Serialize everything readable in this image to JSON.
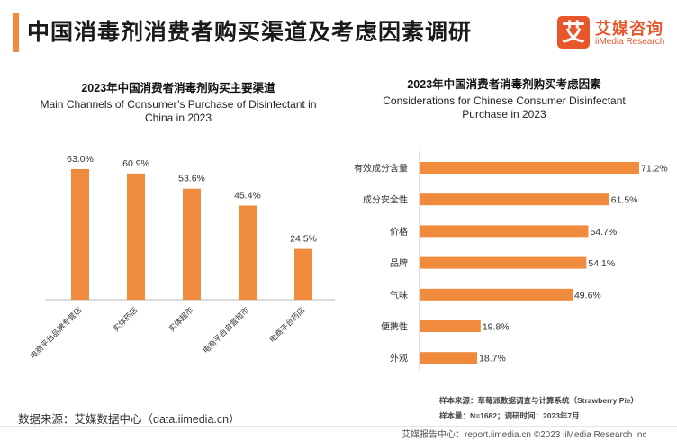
{
  "header": {
    "title": "中国消毒剂消费者购买渠道及考虑因素调研",
    "logo_mark": "艾",
    "logo_cn": "艾媒咨询",
    "logo_en": "iiMedia Research"
  },
  "chart_data": [
    {
      "type": "bar",
      "title": "2023年中国消费者消毒剂购买主要渠道",
      "subtitle": "Main Channels of Consumer’s Purchase of Disinfectant in China in 2023",
      "subtitle_lines": [
        "Main Channels of Consumer’s Purchase of Disinfectant in",
        "China in 2023"
      ],
      "categories": [
        "电商平台品牌专营店",
        "实体药店",
        "实体超市",
        "电商平台自营超市",
        "电商平台药店"
      ],
      "values": [
        63.0,
        60.9,
        53.6,
        45.4,
        24.5
      ],
      "value_labels": [
        "63.0%",
        "60.9%",
        "53.6%",
        "45.4%",
        "24.5%"
      ],
      "ylim": [
        0,
        70
      ],
      "unit": "%",
      "color": "#f08a3c",
      "grid": false
    },
    {
      "type": "bar",
      "orientation": "horizontal",
      "title": "2023年中国消费者消毒剂购买考虑因素",
      "subtitle": "Considerations for Chinese Consumer Disinfectant Purchase in 2023",
      "subtitle_lines": [
        "Considerations for Chinese Consumer Disinfectant",
        "Purchase in 2023"
      ],
      "categories": [
        "有效成分含量",
        "成分安全性",
        "价格",
        "品牌",
        "气味",
        "便携性",
        "外观"
      ],
      "values": [
        71.2,
        61.5,
        54.7,
        54.1,
        49.6,
        19.8,
        18.7
      ],
      "value_labels": [
        "71.2%",
        "61.5%",
        "54.7%",
        "54.1%",
        "49.6%",
        "19.8%",
        "18.7%"
      ],
      "xlim": [
        0,
        71.2
      ],
      "unit": "%",
      "color": "#f08a3c",
      "grid": false
    }
  ],
  "notes": {
    "sample_source": "样本来源：草莓派数据调查与计算系统（Strawberry Pie）",
    "sample_size": "样本量：N=1682；调研时间：2023年7月",
    "data_source": "数据来源：艾媒数据中心（data.iimedia.cn）"
  },
  "footer": {
    "text": "艾媒报告中心：report.iimedia.cn  ©2023  iiMedia Research  Inc"
  }
}
